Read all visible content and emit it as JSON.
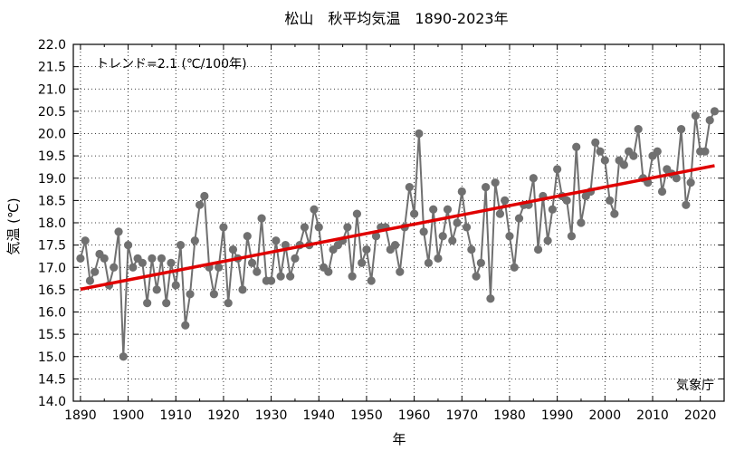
{
  "chart_data": {
    "type": "line",
    "title": "松山　秋平均気温　1890-2023年",
    "xlabel": "年",
    "ylabel": "気温 (℃)",
    "annotation": "トレンド=2.1 (℃/100年)",
    "source": "気象庁",
    "xlim": [
      1888.5,
      2025
    ],
    "ylim": [
      14.0,
      22.0
    ],
    "x_ticks": [
      1890,
      1900,
      1910,
      1920,
      1930,
      1940,
      1950,
      1960,
      1970,
      1980,
      1990,
      2000,
      2010,
      2020
    ],
    "y_ticks": [
      14.0,
      14.5,
      15.0,
      15.5,
      16.0,
      16.5,
      17.0,
      17.5,
      18.0,
      18.5,
      19.0,
      19.5,
      20.0,
      20.5,
      21.0,
      21.5,
      22.0
    ],
    "grid": true,
    "colors": {
      "series": "#707070",
      "trend": "#e00000"
    },
    "series": [
      {
        "x": [
          1890,
          1891,
          1892,
          1893,
          1894,
          1895,
          1896,
          1897,
          1898,
          1899,
          1900,
          1901,
          1902,
          1903,
          1904,
          1905,
          1906,
          1907,
          1908,
          1909,
          1910,
          1911,
          1912,
          1913,
          1914,
          1915,
          1916,
          1917,
          1918,
          1919,
          1920,
          1921,
          1922,
          1923,
          1924,
          1925,
          1926,
          1927,
          1928,
          1929,
          1930,
          1931,
          1932,
          1933,
          1934,
          1935,
          1936,
          1937,
          1938,
          1939,
          1940,
          1941,
          1942,
          1943,
          1944,
          1945,
          1946,
          1947,
          1948,
          1949,
          1950,
          1951,
          1952,
          1953,
          1954,
          1955,
          1956,
          1957,
          1958,
          1959,
          1960,
          1961,
          1962,
          1963,
          1964,
          1965,
          1966,
          1967,
          1968,
          1969,
          1970,
          1971,
          1972,
          1973,
          1974,
          1975,
          1976,
          1977,
          1978,
          1979,
          1980,
          1981,
          1982,
          1983,
          1984,
          1985,
          1986,
          1987,
          1988,
          1989,
          1990,
          1991,
          1992,
          1993,
          1994,
          1995,
          1996,
          1997,
          1998,
          1999,
          2000,
          2001,
          2002,
          2003,
          2004,
          2005,
          2006,
          2007,
          2008,
          2009,
          2010,
          2011,
          2012,
          2013,
          2014,
          2015,
          2016,
          2017,
          2018,
          2019,
          2020,
          2021,
          2022,
          2023
        ],
        "values": [
          17.2,
          17.6,
          16.7,
          16.9,
          17.3,
          17.2,
          16.6,
          17.0,
          17.8,
          15.0,
          17.5,
          17.0,
          17.2,
          17.1,
          16.2,
          17.2,
          16.5,
          17.2,
          16.2,
          17.1,
          16.6,
          17.5,
          15.7,
          16.4,
          17.6,
          18.4,
          18.6,
          17.0,
          16.4,
          17.0,
          17.9,
          16.2,
          17.4,
          17.2,
          16.5,
          17.7,
          17.1,
          16.9,
          18.1,
          16.7,
          16.7,
          17.6,
          16.8,
          17.5,
          16.8,
          17.2,
          17.5,
          17.9,
          17.5,
          18.3,
          17.9,
          17.0,
          16.9,
          17.4,
          17.5,
          17.6,
          17.9,
          16.8,
          18.2,
          17.1,
          17.4,
          16.7,
          17.7,
          17.9,
          17.9,
          17.4,
          17.5,
          16.9,
          17.9,
          18.8,
          18.2,
          20.0,
          17.8,
          17.1,
          18.3,
          17.2,
          17.7,
          18.3,
          17.6,
          18.0,
          18.7,
          17.9,
          17.4,
          16.8,
          17.1,
          18.8,
          16.3,
          18.9,
          18.2,
          18.5,
          17.7,
          17.0,
          18.1,
          18.4,
          18.4,
          19.0,
          17.4,
          18.6,
          17.6,
          18.3,
          19.2,
          18.6,
          18.5,
          17.7,
          19.7,
          18.0,
          18.6,
          18.7,
          19.8,
          19.6,
          19.4,
          18.5,
          18.2,
          19.4,
          19.3,
          19.6,
          19.5,
          20.1,
          19.0,
          18.9,
          19.5,
          19.6,
          18.7,
          19.2,
          19.1,
          19.0,
          20.1,
          18.4,
          18.9,
          20.4,
          19.6,
          19.6,
          20.3,
          20.5
        ]
      }
    ],
    "trend": {
      "x": [
        1890,
        2023
      ],
      "y": [
        16.51,
        19.28
      ]
    }
  }
}
